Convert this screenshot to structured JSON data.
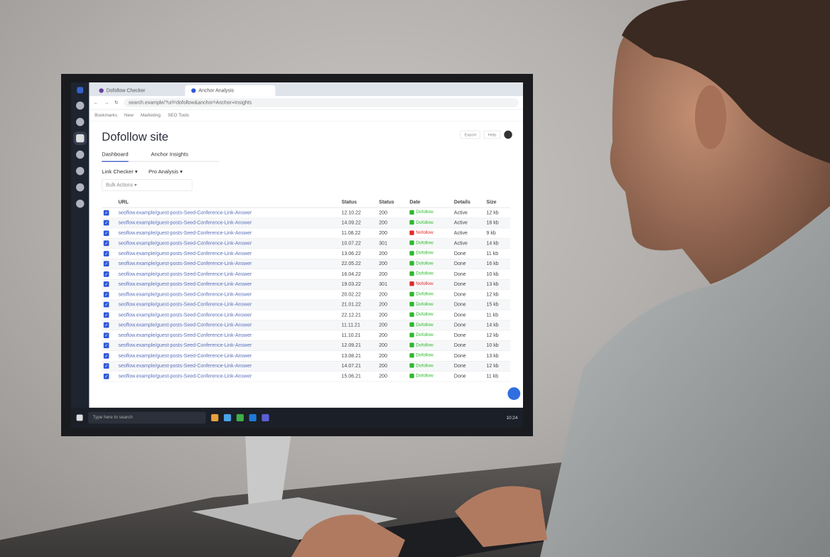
{
  "browser": {
    "tab1": "Dofollow Checker",
    "tab2": "Anchor Analysis",
    "address": "search.example/?url=dofollow&anchor=Anchor+Insights",
    "bookmarks": [
      "Bookmarks",
      "New",
      "Marketing",
      "SEO Tools"
    ]
  },
  "page": {
    "title": "Dofollow site",
    "tabs": [
      "Dashboard",
      "Anchor Insights"
    ],
    "filters": [
      "Link Checker ▾",
      "Pro Analysis ▾"
    ],
    "search_placeholder": "Bulk Actions ▾",
    "top_buttons": [
      "Export",
      "Help"
    ],
    "columns": [
      "",
      "URL",
      "Status",
      "Status",
      "Date",
      "Details",
      "Size"
    ]
  },
  "rows": [
    {
      "url": "seoflow.example/guest-posts-Seed-Conference-Link-Answer",
      "date": "12.10.22",
      "code": "200",
      "status": "Dofollow",
      "details": "Active",
      "size": "12 kb"
    },
    {
      "url": "seoflow.example/guest-posts-Seed-Conference-Link-Answer",
      "date": "14.09.22",
      "code": "200",
      "status": "Dofollow",
      "details": "Active",
      "size": "18 kb"
    },
    {
      "url": "seoflow.example/guest-posts-Seed-Conference-Link-Answer",
      "date": "11.08.22",
      "code": "200",
      "status": "Nofollow",
      "details": "Active",
      "size": "9 kb"
    },
    {
      "url": "seoflow.example/guest-posts-Seed-Conference-Link-Answer",
      "date": "10.07.22",
      "code": "301",
      "status": "Dofollow",
      "details": "Active",
      "size": "14 kb"
    },
    {
      "url": "seoflow.example/guest-posts-Seed-Conference-Link-Answer",
      "date": "13.06.22",
      "code": "200",
      "status": "Dofollow",
      "details": "Done",
      "size": "11 kb"
    },
    {
      "url": "seoflow.example/guest-posts-Seed-Conference-Link-Answer",
      "date": "22.05.22",
      "code": "200",
      "status": "Dofollow",
      "details": "Done",
      "size": "16 kb"
    },
    {
      "url": "seoflow.example/guest-posts-Seed-Conference-Link-Answer",
      "date": "16.04.22",
      "code": "200",
      "status": "Dofollow",
      "details": "Done",
      "size": "10 kb"
    },
    {
      "url": "seoflow.example/guest-posts-Seed-Conference-Link-Answer",
      "date": "19.03.22",
      "code": "301",
      "status": "Nofollow",
      "details": "Done",
      "size": "13 kb"
    },
    {
      "url": "seoflow.example/guest-posts-Seed-Conference-Link-Answer",
      "date": "20.02.22",
      "code": "200",
      "status": "Dofollow",
      "details": "Done",
      "size": "12 kb"
    },
    {
      "url": "seoflow.example/guest-posts-Seed-Conference-Link-Answer",
      "date": "21.01.22",
      "code": "200",
      "status": "Dofollow",
      "details": "Done",
      "size": "15 kb"
    },
    {
      "url": "seoflow.example/guest-posts-Seed-Conference-Link-Answer",
      "date": "22.12.21",
      "code": "200",
      "status": "Dofollow",
      "details": "Done",
      "size": "11 kb"
    },
    {
      "url": "seoflow.example/guest-posts-Seed-Conference-Link-Answer",
      "date": "11.11.21",
      "code": "200",
      "status": "Dofollow",
      "details": "Done",
      "size": "14 kb"
    },
    {
      "url": "seoflow.example/guest-posts-Seed-Conference-Link-Answer",
      "date": "11.10.21",
      "code": "200",
      "status": "Dofollow",
      "details": "Done",
      "size": "12 kb"
    },
    {
      "url": "seoflow.example/guest-posts-Seed-Conference-Link-Answer",
      "date": "12.09.21",
      "code": "200",
      "status": "Dofollow",
      "details": "Done",
      "size": "10 kb"
    },
    {
      "url": "seoflow.example/guest-posts-Seed-Conference-Link-Answer",
      "date": "13.08.21",
      "code": "200",
      "status": "Dofollow",
      "details": "Done",
      "size": "13 kb"
    },
    {
      "url": "seoflow.example/guest-posts-Seed-Conference-Link-Answer",
      "date": "14.07.21",
      "code": "200",
      "status": "Dofollow",
      "details": "Done",
      "size": "12 kb"
    },
    {
      "url": "seoflow.example/guest-posts-Seed-Conference-Link-Answer",
      "date": "15.06.21",
      "code": "200",
      "status": "Dofollow",
      "details": "Done",
      "size": "11 kb"
    }
  ],
  "taskbar": {
    "search": "Type here to search",
    "clock": "10:24"
  },
  "colors": {
    "dofollow": "#2eb82e",
    "nofollow": "#e02a2a",
    "accent": "#2f57d8"
  }
}
